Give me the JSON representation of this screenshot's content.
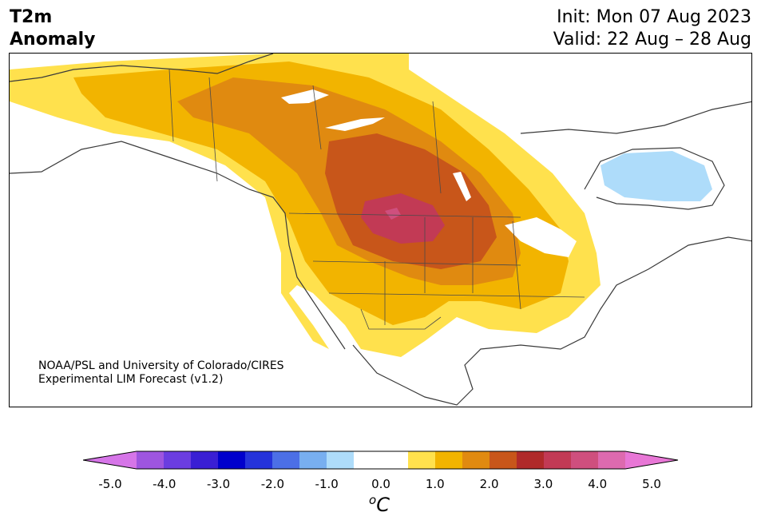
{
  "header": {
    "title_line1": "T2m",
    "title_line2": "Anomaly",
    "init_label": "Init: Mon 07 Aug 2023",
    "valid_label": "Valid: 22 Aug – 28 Aug"
  },
  "credit": {
    "line1": "NOAA/PSL and University of Colorado/CIRES",
    "line2": "Experimental LIM Forecast (v1.2)"
  },
  "map": {
    "region": "North America",
    "variable": "2 m temperature anomaly",
    "max_warm_anomaly_c": 4.5,
    "cool_anomaly_region": "Hudson Bay",
    "cool_anomaly_c": -1.0
  },
  "colorbar": {
    "colors": [
      "#d675e8",
      "#9e55df",
      "#6b3de0",
      "#3a1fd4",
      "#0000cc",
      "#2533da",
      "#4c6fe6",
      "#78aff0",
      "#aedcfa",
      "#ffffff",
      "#ffffff",
      "#ffe14d",
      "#f2b400",
      "#e08a10",
      "#c8561a",
      "#b02a2a",
      "#c23a55",
      "#cf4f7e",
      "#dd6aaf",
      "#e877d6"
    ],
    "tick_labels": [
      "-5.0",
      "-4.0",
      "-3.0",
      "-2.0",
      "-1.0",
      "0.0",
      "1.0",
      "2.0",
      "3.0",
      "4.0",
      "5.0"
    ],
    "unit_base": "C",
    "unit_superscript": "o"
  }
}
